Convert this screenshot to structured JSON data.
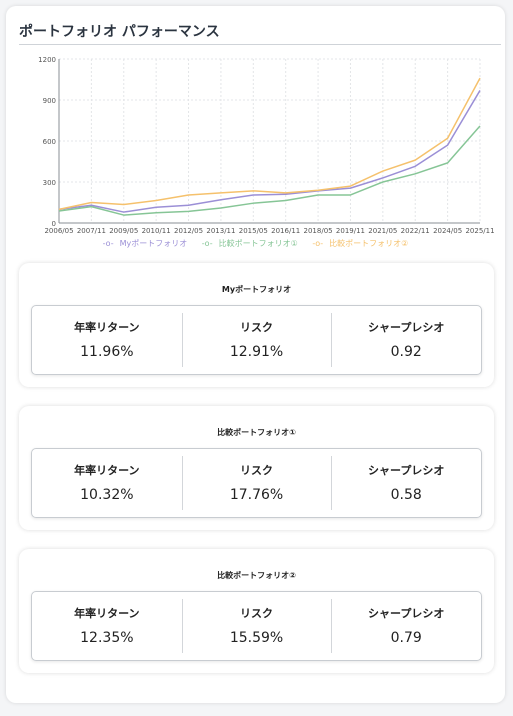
{
  "title": "ポートフォリオ パフォーマンス",
  "chart_data": {
    "type": "line",
    "x": [
      "2006/05",
      "2007/11",
      "2009/05",
      "2010/11",
      "2012/05",
      "2013/11",
      "2015/05",
      "2016/11",
      "2018/05",
      "2019/11",
      "2021/05",
      "2022/11",
      "2024/05",
      "2025/11"
    ],
    "ylim": [
      0,
      1200
    ],
    "yticks": [
      0,
      300,
      600,
      900,
      1200
    ],
    "grid": true,
    "legend_position": "bottom",
    "series": [
      {
        "name": "Myポートフォリオ",
        "color": "#9b8fd6",
        "values": [
          100,
          130,
          80,
          115,
          130,
          170,
          205,
          210,
          235,
          255,
          330,
          415,
          570,
          970
        ]
      },
      {
        "name": "比較ポートフォリオ①",
        "color": "#86c596",
        "values": [
          88,
          120,
          58,
          75,
          85,
          110,
          145,
          165,
          205,
          205,
          300,
          360,
          440,
          710
        ]
      },
      {
        "name": "比較ポートフォリオ②",
        "color": "#f5c16c",
        "values": [
          100,
          150,
          135,
          165,
          205,
          220,
          235,
          220,
          240,
          270,
          380,
          460,
          620,
          1060
        ]
      }
    ]
  },
  "label_prefix": "-o-",
  "metric_labels": {
    "return": "年率リターン",
    "risk": "リスク",
    "sharpe": "シャープレシオ"
  },
  "panels": [
    {
      "name": "Myポートフォリオ",
      "return": "11.96%",
      "risk": "12.91%",
      "sharpe": "0.92"
    },
    {
      "name": "比較ポートフォリオ①",
      "return": "10.32%",
      "risk": "17.76%",
      "sharpe": "0.58"
    },
    {
      "name": "比較ポートフォリオ②",
      "return": "12.35%",
      "risk": "15.59%",
      "sharpe": "0.79"
    }
  ]
}
